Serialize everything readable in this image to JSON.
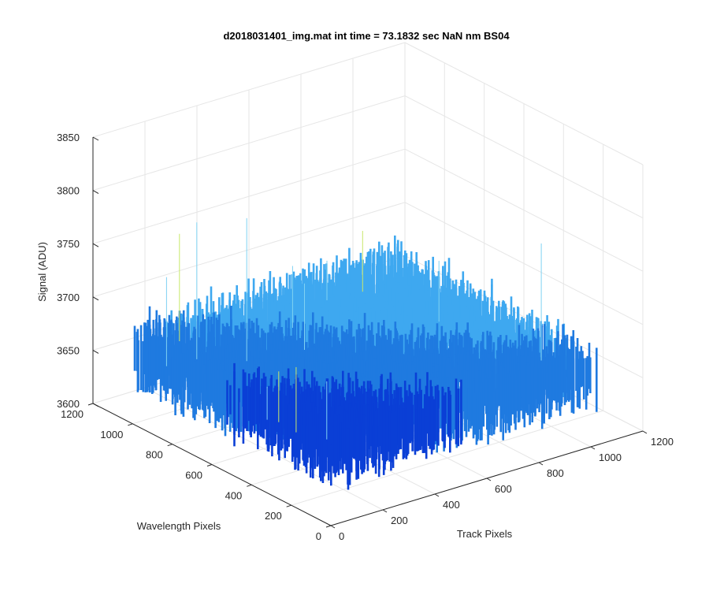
{
  "chart_data": {
    "type": "surface",
    "title": "d2018031401_img.mat int time = 73.1832 sec  NaN nm BS04",
    "xlabel": "Track Pixels",
    "ylabel": "Wavelength Pixels",
    "zlabel": "Signal (ADU)",
    "x_ticks": [
      "0",
      "200",
      "400",
      "600",
      "800",
      "1000",
      "1200"
    ],
    "y_ticks": [
      "0",
      "200",
      "400",
      "600",
      "800",
      "1000",
      "1200"
    ],
    "z_ticks": [
      "3600",
      "3650",
      "3700",
      "3750",
      "3800",
      "3850"
    ],
    "xlim": [
      0,
      1200
    ],
    "ylim": [
      0,
      1200
    ],
    "zlim": [
      3600,
      3850
    ],
    "surface": {
      "x_range": [
        0,
        1024
      ],
      "y_range": [
        0,
        1024
      ],
      "mean_signal": 3665,
      "noise_low": 3635,
      "noise_high": 3695,
      "outlier_max": 3805
    },
    "grid": true,
    "colormap_colors": [
      "#0a3fd6",
      "#1f7ae0",
      "#3ea8f0",
      "#7fd2f2",
      "#c8e86a"
    ]
  }
}
